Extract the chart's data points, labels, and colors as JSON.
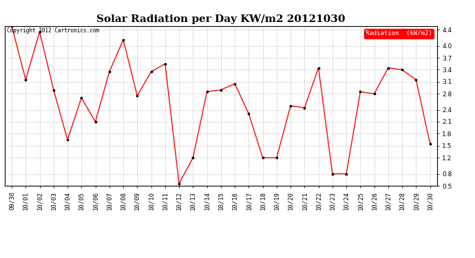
{
  "title": "Solar Radiation per Day KW/m2 20121030",
  "dates": [
    "09/30",
    "10/01",
    "10/02",
    "10/03",
    "10/04",
    "10/05",
    "10/06",
    "10/07",
    "10/08",
    "10/09",
    "10/10",
    "10/11",
    "10/12",
    "10/13",
    "10/14",
    "10/15",
    "10/16",
    "10/17",
    "10/18",
    "10/19",
    "10/20",
    "10/21",
    "10/22",
    "10/23",
    "10/24",
    "10/25",
    "10/26",
    "10/27",
    "10/28",
    "10/29",
    "10/30"
  ],
  "values": [
    4.5,
    3.15,
    4.35,
    2.9,
    1.65,
    2.7,
    2.1,
    3.35,
    4.15,
    2.75,
    3.35,
    3.55,
    0.55,
    1.2,
    2.85,
    2.9,
    3.05,
    2.3,
    1.2,
    1.2,
    2.5,
    2.45,
    3.45,
    0.8,
    0.8,
    2.85,
    2.8,
    3.45,
    3.4,
    3.15,
    1.55
  ],
  "line_color": "#ff0000",
  "marker_color": "#000000",
  "bg_color": "#ffffff",
  "plot_bg_color": "#ffffff",
  "grid_color": "#aaaaaa",
  "legend_label": "Radiation  (kW/m2)",
  "legend_bg": "#ff0000",
  "legend_text_color": "#ffffff",
  "copyright_text": "Copyright 2012 Cartronics.com",
  "ylim": [
    0.5,
    4.5
  ],
  "yticks": [
    0.5,
    0.8,
    1.2,
    1.5,
    1.8,
    2.1,
    2.4,
    2.8,
    3.1,
    3.4,
    3.7,
    4.0,
    4.4
  ],
  "title_fontsize": 11,
  "axis_fontsize": 6.5,
  "copyright_fontsize": 5.5,
  "legend_fontsize": 6.5
}
